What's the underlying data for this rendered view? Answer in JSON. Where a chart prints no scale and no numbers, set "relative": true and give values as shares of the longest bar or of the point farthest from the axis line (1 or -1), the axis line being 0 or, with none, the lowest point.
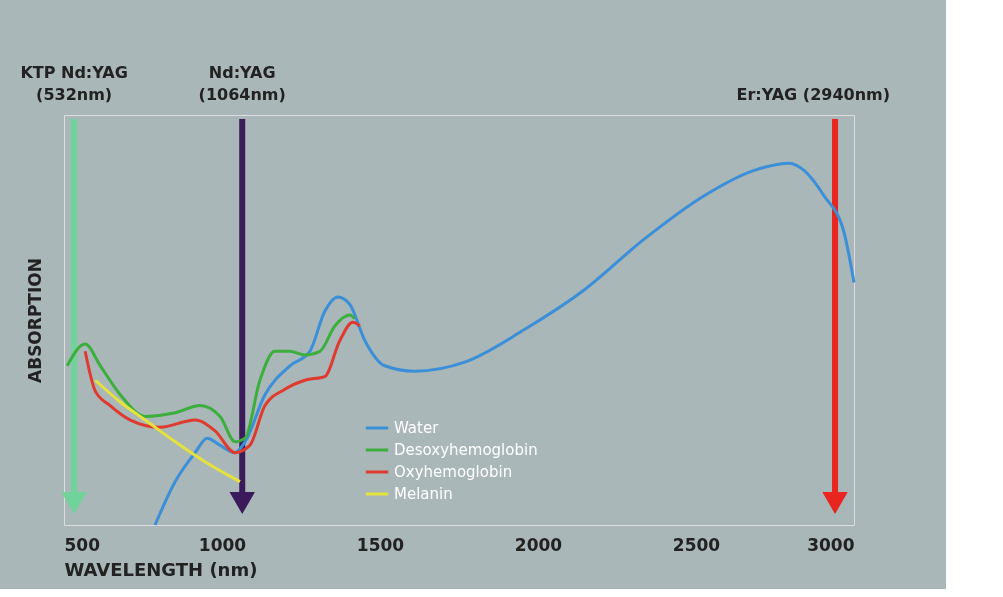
{
  "chart_data": {
    "type": "line",
    "relative": true,
    "xlabel": "WAVELENGTH (nm)",
    "ylabel": "ABSORPTION",
    "xlim": [
      500,
      3000
    ],
    "xticks": [
      500,
      1000,
      1500,
      2000,
      2500,
      3000
    ],
    "grid": false,
    "legend": "bottom",
    "series": [
      {
        "name": "Water",
        "color": "#3b8fd9",
        "x": [
          788,
          852,
          915,
          953,
          994,
          1041,
          1073,
          1136,
          1215,
          1278,
          1325,
          1367,
          1404,
          1452,
          1515,
          1610,
          1768,
          1957,
          2147,
          2336,
          2526,
          2684,
          2795,
          2842,
          2905,
          2968,
          3000
        ],
        "values": [
          0,
          0.12,
          0.2,
          0.24,
          0.22,
          0.2,
          0.23,
          0.36,
          0.44,
          0.48,
          0.59,
          0.63,
          0.61,
          0.51,
          0.44,
          0.425,
          0.45,
          0.54,
          0.65,
          0.79,
          0.91,
          0.98,
          1.0,
          0.98,
          0.91,
          0.81,
          0.67
        ]
      },
      {
        "name": "Desoxyhemoglobin",
        "color": "#3cae3c",
        "x": [
          510,
          567,
          615,
          678,
          757,
          852,
          930,
          994,
          1041,
          1073,
          1120,
          1167,
          1215,
          1262,
          1310,
          1357,
          1404,
          1420
        ],
        "values": [
          0.44,
          0.5,
          0.44,
          0.36,
          0.3,
          0.31,
          0.33,
          0.3,
          0.23,
          0.24,
          0.4,
          0.48,
          0.48,
          0.47,
          0.48,
          0.55,
          0.58,
          0.57
        ]
      },
      {
        "name": "Oxyhemoglobin",
        "color": "#e03a2e",
        "x": [
          567,
          599,
          646,
          710,
          804,
          915,
          978,
          1041,
          1088,
          1136,
          1199,
          1262,
          1325,
          1373,
          1414,
          1436
        ],
        "values": [
          0.48,
          0.37,
          0.33,
          0.29,
          0.27,
          0.29,
          0.26,
          0.2,
          0.22,
          0.33,
          0.375,
          0.4,
          0.41,
          0.51,
          0.56,
          0.55
        ]
      },
      {
        "name": "Melanin",
        "color": "#e6e23c",
        "x": [
          599,
          678,
          757,
          852,
          946,
          1057
        ],
        "values": [
          0.4,
          0.34,
          0.29,
          0.23,
          0.175,
          0.12
        ]
      }
    ],
    "ref_lines": [
      {
        "axis": "x",
        "value": 532,
        "label": "KTP Nd:YAG (532nm)",
        "color": "#6fd39a"
      },
      {
        "axis": "x",
        "value": 1064,
        "label": "Nd:YAG (1064nm)",
        "color": "#3a1a5a"
      },
      {
        "axis": "x",
        "value": 2940,
        "label": "Er:YAG (2940nm)",
        "color": "#e8261f"
      }
    ]
  }
}
